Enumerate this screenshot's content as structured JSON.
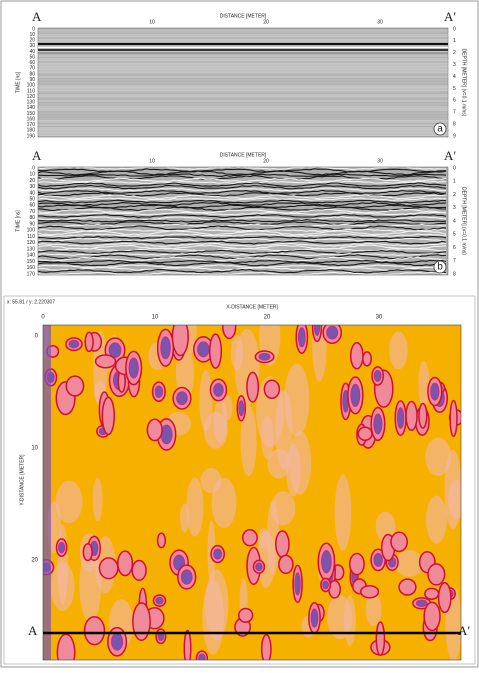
{
  "panels": [
    {
      "left_mark": "A",
      "right_mark": "A′",
      "top_axis": "DISTANCE [METER]",
      "top_ticks": [
        10,
        20,
        30
      ],
      "left_axis": "TIME [ns]",
      "left_ticks": [
        0,
        10,
        20,
        30,
        40,
        50,
        60,
        70,
        80,
        90,
        100,
        110,
        120,
        130,
        140,
        150,
        160,
        170,
        180,
        190
      ],
      "right_axis": "DEPTH [METER] (v=0.1 m/ns)",
      "right_ticks": [
        0,
        1,
        2,
        3,
        4,
        5,
        6,
        7,
        8,
        9
      ],
      "letter": "a"
    },
    {
      "left_mark": "A",
      "right_mark": "A′",
      "top_axis": "DISTANCE [METER]",
      "top_ticks": [
        10,
        20,
        30
      ],
      "left_axis": "TIME [ns]",
      "left_ticks": [
        0,
        10,
        20,
        30,
        40,
        50,
        60,
        70,
        80,
        90,
        100,
        110,
        120,
        130,
        140,
        150,
        160,
        170
      ],
      "right_axis": "DEPTH [METER] (v=0.1 m/ns)",
      "right_ticks": [
        0,
        1,
        2,
        3,
        4,
        5,
        6,
        7,
        8
      ],
      "letter": "b"
    }
  ],
  "map": {
    "coords": "x: 55.81 / y: 2.220307",
    "x_axis": "X-DISTANCE [METER]",
    "x_ticks": [
      0,
      10,
      20,
      30
    ],
    "y_axis": "Y-DISTANCE [METER]",
    "y_ticks": [
      0,
      10,
      20
    ],
    "left_mark": "A",
    "right_mark": "A′"
  }
}
